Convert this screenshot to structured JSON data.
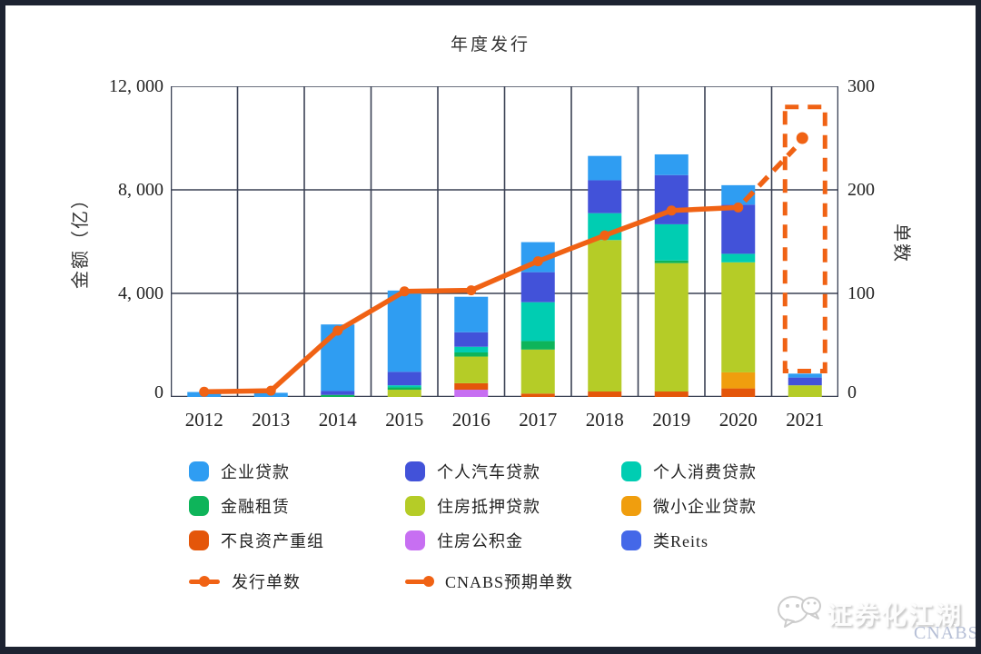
{
  "frame": {
    "background": "#ffffff",
    "border_color": "#1d2331"
  },
  "chart": {
    "title": "年度发行",
    "left_axis": {
      "title": "金额（亿）",
      "ticks": [
        "12, 000",
        "8, 000",
        "4, 000",
        "0"
      ]
    },
    "right_axis": {
      "title": "单数",
      "ticks": [
        "300",
        "200",
        "100",
        "0"
      ]
    }
  },
  "chart_data": {
    "type": "stacked-bar+line",
    "title": "年度发行",
    "xlabel": "",
    "ylabel_left": "金额（亿）",
    "ylabel_right": "单数",
    "ylim_left": [
      0,
      12000
    ],
    "ylim_right": [
      0,
      300
    ],
    "grid": true,
    "grid_color": "#3A4154",
    "categories": [
      "2012",
      "2013",
      "2014",
      "2015",
      "2016",
      "2017",
      "2018",
      "2019",
      "2020",
      "2021"
    ],
    "series": [
      {
        "name": "住房公积金",
        "color": "#C76FF2",
        "values": [
          0,
          0,
          0,
          0,
          280,
          0,
          0,
          0,
          0,
          0
        ]
      },
      {
        "name": "不良资产重组",
        "color": "#E4560A",
        "values": [
          0,
          0,
          0,
          0,
          250,
          130,
          210,
          210,
          330,
          0
        ]
      },
      {
        "name": "微小企业贷款",
        "color": "#F09E0E",
        "values": [
          0,
          0,
          0,
          0,
          0,
          0,
          0,
          0,
          620,
          0
        ]
      },
      {
        "name": "住房抵押贷款",
        "color": "#B5CC27",
        "values": [
          0,
          0,
          0,
          280,
          1030,
          1700,
          5850,
          4960,
          4250,
          450
        ]
      },
      {
        "name": "金融租赁",
        "color": "#0EB45A",
        "values": [
          0,
          0,
          80,
          90,
          160,
          330,
          0,
          100,
          0,
          0
        ]
      },
      {
        "name": "个人消费贷款",
        "color": "#00CDB2",
        "values": [
          0,
          0,
          0,
          80,
          220,
          1500,
          1040,
          1400,
          330,
          0
        ]
      },
      {
        "name": "个人汽车贷款",
        "color": "#4252D9",
        "values": [
          0,
          0,
          150,
          520,
          560,
          1160,
          1270,
          1900,
          1900,
          300
        ]
      },
      {
        "name": "企业贷款",
        "color": "#2F9DF2",
        "values": [
          190,
          160,
          2570,
          3140,
          1370,
          1160,
          940,
          800,
          750,
          150
        ]
      },
      {
        "name": "类Reits",
        "color": "#4468E8",
        "values": [
          0,
          0,
          0,
          0,
          0,
          0,
          0,
          0,
          0,
          0
        ]
      }
    ],
    "line_series": {
      "name": "发行单数",
      "color": "#F06214",
      "values": [
        5,
        6,
        64,
        102,
        103,
        131,
        156,
        180,
        183,
        null
      ]
    },
    "forecast": {
      "name": "CNABS预期单数",
      "year": "2021",
      "color": "#F06214",
      "expected_count": 250,
      "box_top_amount": 11200,
      "box_bottom_amount": 1000
    }
  },
  "legend": {
    "items": [
      {
        "label": "企业贷款",
        "color": "#2F9DF2"
      },
      {
        "label": "个人汽车贷款",
        "color": "#4252D9"
      },
      {
        "label": "个人消费贷款",
        "color": "#00CDB2"
      },
      {
        "label": "金融租赁",
        "color": "#0EB45A"
      },
      {
        "label": "住房抵押贷款",
        "color": "#B5CC27"
      },
      {
        "label": "微小企业贷款",
        "color": "#F09E0E"
      },
      {
        "label": "不良资产重组",
        "color": "#E4560A"
      },
      {
        "label": "住房公积金",
        "color": "#C76FF2"
      },
      {
        "label": "类Reits",
        "color": "#4468E8"
      }
    ],
    "line_items": [
      {
        "label": "发行单数",
        "color": "#F06214",
        "marker": "dot-middle"
      },
      {
        "label": "CNABS预期单数",
        "color": "#F06214",
        "marker": "dot-end"
      }
    ]
  },
  "watermark": {
    "text": "证券化江湖",
    "brand": "CNABS"
  }
}
